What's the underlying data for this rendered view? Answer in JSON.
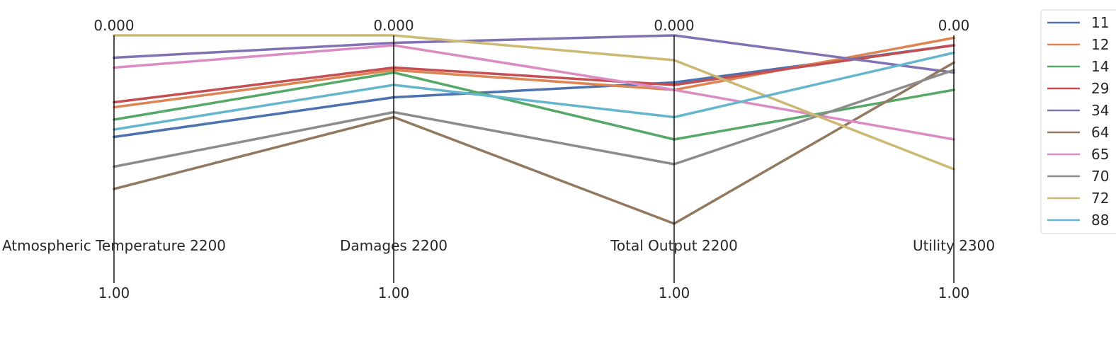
{
  "chart_data": {
    "type": "parallel_coordinates",
    "axes": [
      {
        "label": "Atmospheric Temperature 2200",
        "top_tick": "0.000",
        "bottom_tick": "1.00"
      },
      {
        "label": "Damages 2200",
        "top_tick": "0.000",
        "bottom_tick": "1.00"
      },
      {
        "label": "Total Output 2200",
        "top_tick": "0.000",
        "bottom_tick": "1.00"
      },
      {
        "label": "Utility 2300",
        "top_tick": "0.00",
        "bottom_tick": "1.00"
      }
    ],
    "value_range": [
      0,
      1
    ],
    "grid": false,
    "legend_position": "right",
    "series": [
      {
        "name": "11",
        "color": "#4c72b0",
        "values": [
          0.41,
          0.25,
          0.19,
          0.04
        ]
      },
      {
        "name": "12",
        "color": "#dd8452",
        "values": [
          0.29,
          0.14,
          0.22,
          0.01
        ]
      },
      {
        "name": "14",
        "color": "#55a868",
        "values": [
          0.34,
          0.15,
          0.42,
          0.22
        ]
      },
      {
        "name": "29",
        "color": "#c44e52",
        "values": [
          0.27,
          0.13,
          0.2,
          0.04
        ]
      },
      {
        "name": "34",
        "color": "#8172b3",
        "values": [
          0.09,
          0.03,
          0.0,
          0.15
        ]
      },
      {
        "name": "64",
        "color": "#937860",
        "values": [
          0.62,
          0.33,
          0.76,
          0.11
        ]
      },
      {
        "name": "65",
        "color": "#da8bc3",
        "values": [
          0.13,
          0.04,
          0.22,
          0.42
        ]
      },
      {
        "name": "70",
        "color": "#8c8c8c",
        "values": [
          0.53,
          0.31,
          0.52,
          0.14
        ]
      },
      {
        "name": "72",
        "color": "#ccb974",
        "values": [
          0.0,
          0.0,
          0.1,
          0.54
        ]
      },
      {
        "name": "88",
        "color": "#64b5cd",
        "values": [
          0.38,
          0.2,
          0.33,
          0.07
        ]
      }
    ]
  }
}
